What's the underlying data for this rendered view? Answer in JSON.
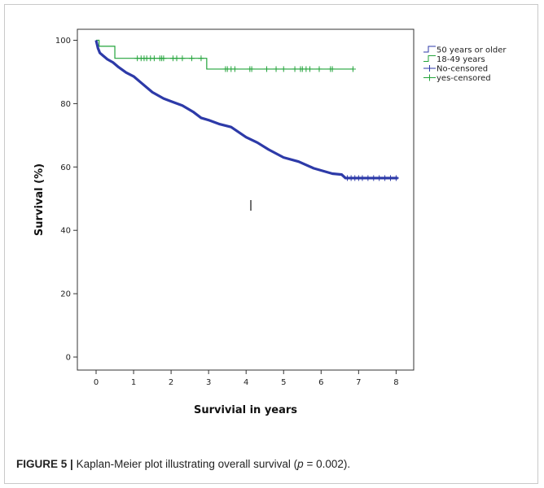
{
  "chart_data": {
    "type": "line",
    "title": "",
    "xlabel": "Survivial in years",
    "ylabel": "Survival (%)",
    "xlim": [
      0,
      8
    ],
    "ylim": [
      0,
      100
    ],
    "xticks": [
      0,
      1,
      2,
      3,
      4,
      5,
      6,
      7,
      8
    ],
    "yticks": [
      0,
      20,
      40,
      60,
      80,
      100
    ],
    "grid": false,
    "legend_position": "right",
    "legend": [
      {
        "label": "50 years or older",
        "color": "#2d3aa8",
        "marker": "step"
      },
      {
        "label": "18-49 years",
        "color": "#22a33a",
        "marker": "step"
      },
      {
        "label": "No-censored",
        "color": "#2d3aa8",
        "marker": "plus"
      },
      {
        "label": "yes-censored",
        "color": "#22a33a",
        "marker": "plus"
      }
    ],
    "series": [
      {
        "name": "18-49 years",
        "color": "#22a33a",
        "steps": [
          [
            0,
            100
          ],
          [
            0.08,
            98.1
          ],
          [
            0.5,
            94.3
          ],
          [
            2.95,
            90.9
          ],
          [
            6.85,
            90.9
          ]
        ],
        "censored": [
          [
            1.1,
            94.3
          ],
          [
            1.2,
            94.3
          ],
          [
            1.28,
            94.3
          ],
          [
            1.35,
            94.3
          ],
          [
            1.45,
            94.3
          ],
          [
            1.55,
            94.3
          ],
          [
            1.7,
            94.3
          ],
          [
            1.75,
            94.3
          ],
          [
            1.8,
            94.3
          ],
          [
            2.05,
            94.3
          ],
          [
            2.15,
            94.3
          ],
          [
            2.3,
            94.3
          ],
          [
            2.55,
            94.3
          ],
          [
            2.8,
            94.3
          ],
          [
            3.45,
            90.9
          ],
          [
            3.5,
            90.9
          ],
          [
            3.6,
            90.9
          ],
          [
            3.7,
            90.9
          ],
          [
            4.1,
            90.9
          ],
          [
            4.15,
            90.9
          ],
          [
            4.55,
            90.9
          ],
          [
            4.8,
            90.9
          ],
          [
            5.0,
            90.9
          ],
          [
            5.3,
            90.9
          ],
          [
            5.45,
            90.9
          ],
          [
            5.5,
            90.9
          ],
          [
            5.6,
            90.9
          ],
          [
            5.7,
            90.9
          ],
          [
            5.95,
            90.9
          ],
          [
            6.25,
            90.9
          ],
          [
            6.3,
            90.9
          ],
          [
            6.85,
            90.9
          ]
        ]
      },
      {
        "name": "50 years or older",
        "color": "#2d3aa8",
        "curve": [
          [
            0,
            100
          ],
          [
            0.05,
            97.5
          ],
          [
            0.1,
            96.0
          ],
          [
            0.2,
            95.0
          ],
          [
            0.3,
            94.0
          ],
          [
            0.45,
            93.0
          ],
          [
            0.6,
            91.5
          ],
          [
            0.8,
            89.8
          ],
          [
            1.0,
            88.6
          ],
          [
            1.2,
            86.6
          ],
          [
            1.5,
            83.6
          ],
          [
            1.8,
            81.6
          ],
          [
            2.0,
            80.7
          ],
          [
            2.3,
            79.4
          ],
          [
            2.6,
            77.3
          ],
          [
            2.8,
            75.5
          ],
          [
            3.0,
            74.8
          ],
          [
            3.3,
            73.5
          ],
          [
            3.6,
            72.6
          ],
          [
            4.0,
            69.4
          ],
          [
            4.3,
            67.7
          ],
          [
            4.6,
            65.5
          ],
          [
            5.0,
            63.0
          ],
          [
            5.4,
            61.7
          ],
          [
            5.8,
            59.6
          ],
          [
            6.3,
            57.9
          ],
          [
            6.55,
            57.6
          ],
          [
            6.65,
            56.5
          ],
          [
            8.05,
            56.5
          ]
        ],
        "censored": [
          [
            6.7,
            56.5
          ],
          [
            6.8,
            56.5
          ],
          [
            6.9,
            56.5
          ],
          [
            7.0,
            56.5
          ],
          [
            7.1,
            56.5
          ],
          [
            7.25,
            56.5
          ],
          [
            7.4,
            56.5
          ],
          [
            7.55,
            56.5
          ],
          [
            7.7,
            56.5
          ],
          [
            7.85,
            56.5
          ],
          [
            8.0,
            56.5
          ]
        ]
      }
    ],
    "annotations": []
  },
  "caption": {
    "label": "FIGURE 5 |",
    "text_before": "Kaplan-Meier plot illustrating overall survival (",
    "p_symbol": "p",
    "text_after": " = 0.002)."
  },
  "colors": {
    "young_series": "#22a33a",
    "old_series": "#2d3aa8",
    "axis": "#333333",
    "frame": "#c9c9c9"
  }
}
